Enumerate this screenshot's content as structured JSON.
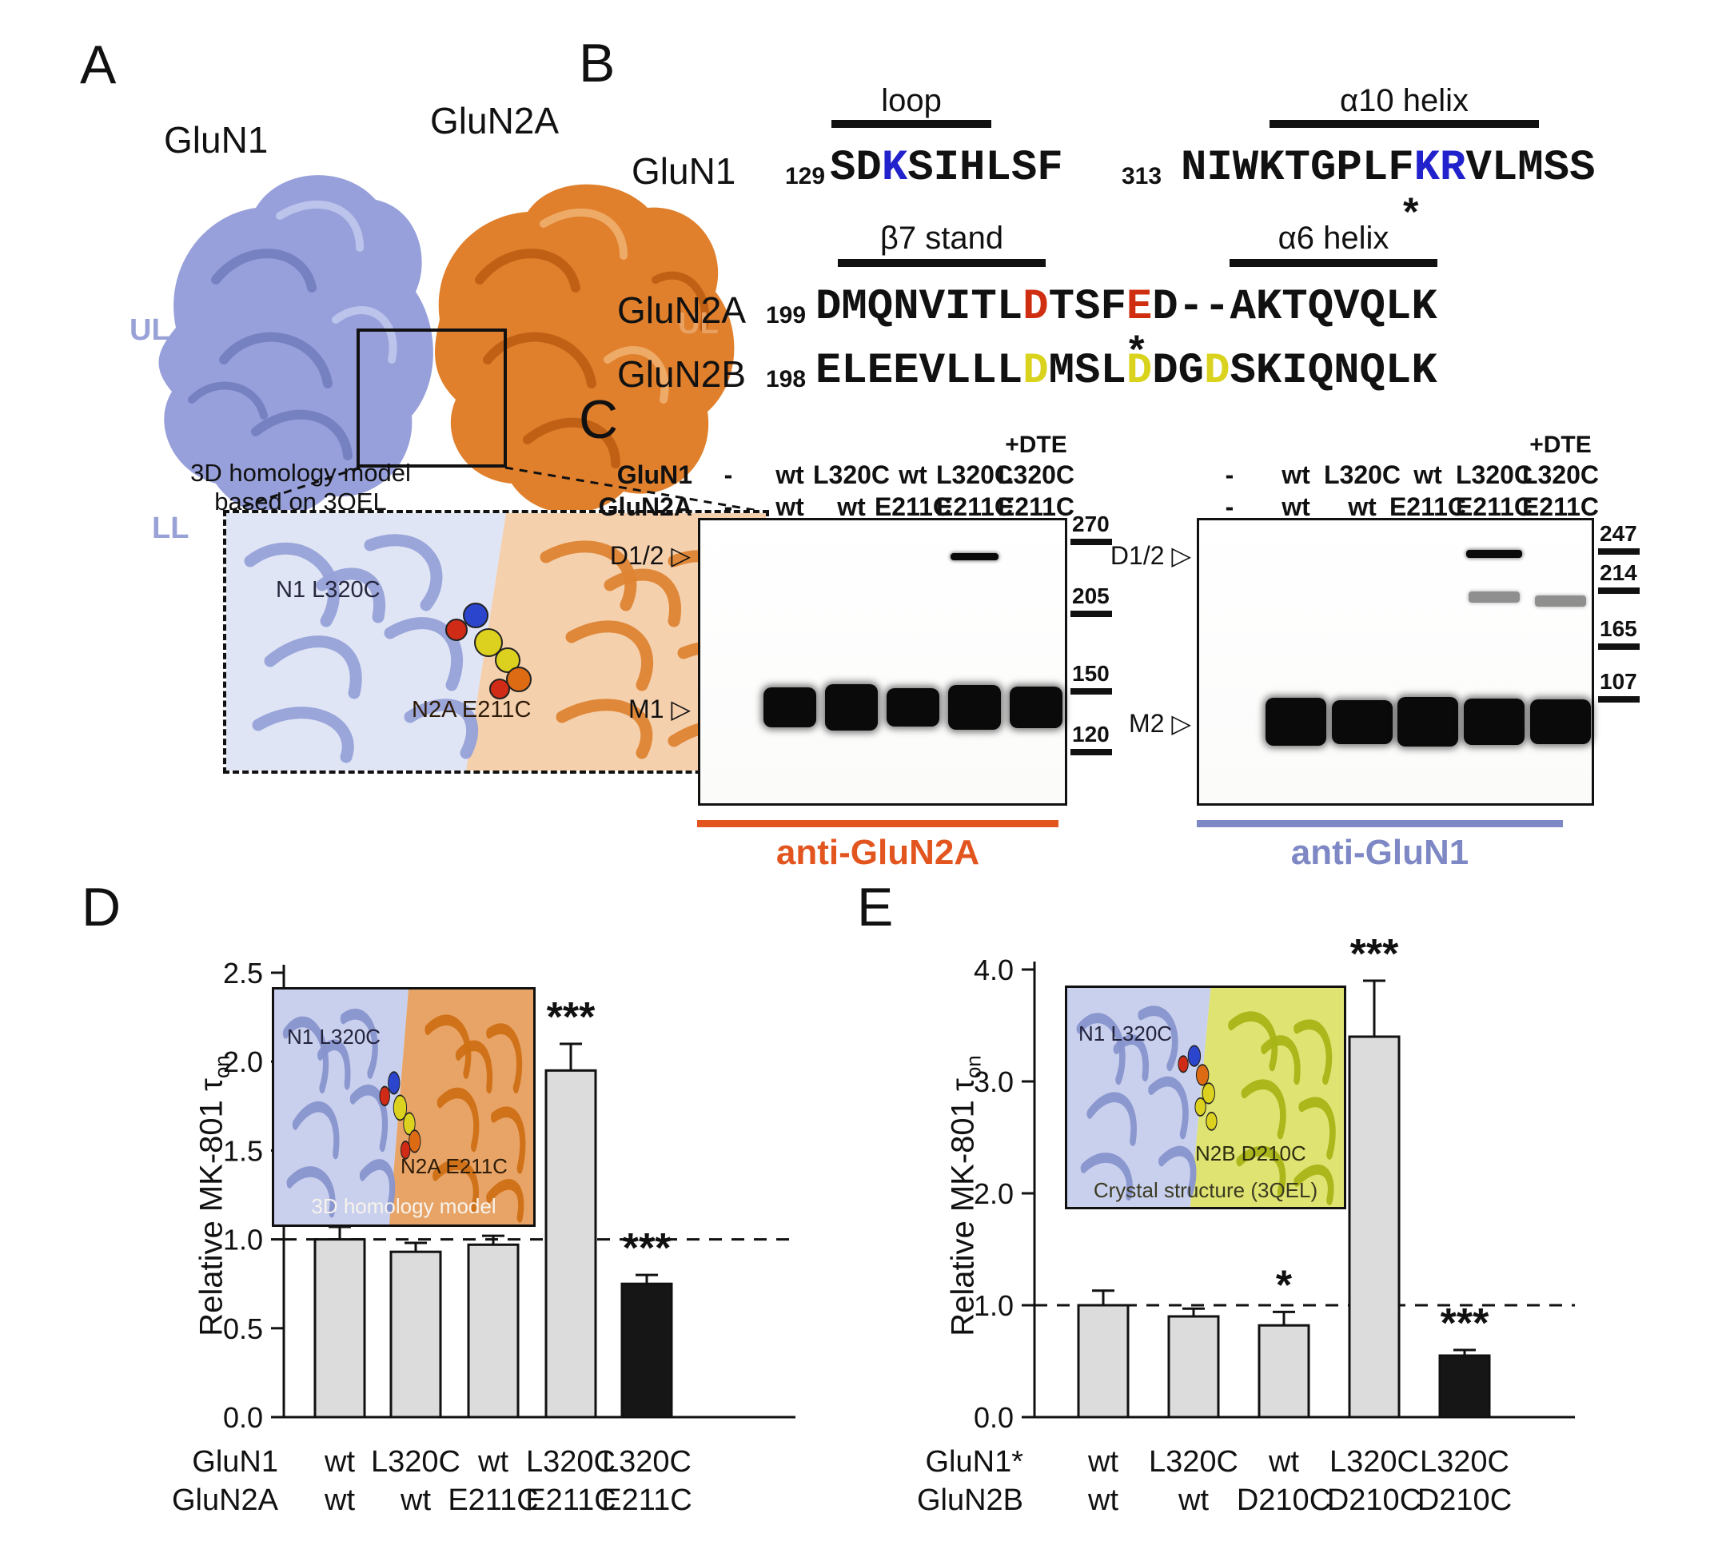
{
  "panelA": {
    "label": "A",
    "glun1": "GluN1",
    "glun2a": "GluN2A",
    "ul": "UL",
    "ll": "LL",
    "caption1": "3D homology model",
    "caption2": "based on 3QEL",
    "residue1": "N1 L320C",
    "residue2": "N2A E211C"
  },
  "panelB": {
    "label": "B",
    "headers": {
      "loop": "loop",
      "a10": "α10 helix",
      "b7": "β7 stand",
      "a6": "α6 helix"
    },
    "glun1": {
      "name": "GluN1",
      "start1": "129",
      "seq1": [
        {
          "t": "SD"
        },
        {
          "t": "K",
          "c": "blue"
        },
        {
          "t": "SIHLSF"
        }
      ],
      "start2": "313",
      "seq2": [
        {
          "t": "NIWKTGPLF"
        },
        {
          "t": "KR",
          "c": "blue"
        },
        {
          "t": "VLMSS"
        }
      ],
      "asterisk": "*"
    },
    "glun2a": {
      "name": "GluN2A",
      "start": "199",
      "seq": [
        {
          "t": "DMQNVITL"
        },
        {
          "t": "D",
          "c": "red"
        },
        {
          "t": "TSF"
        },
        {
          "t": "E",
          "c": "red"
        },
        {
          "t": "D--AKTQVQLK"
        }
      ],
      "asterisk": "*"
    },
    "glun2b": {
      "name": "GluN2B",
      "start": "198",
      "seq": [
        {
          "t": "ELEEVLLL"
        },
        {
          "t": "D",
          "c": "yellow"
        },
        {
          "t": "MSL"
        },
        {
          "t": "D",
          "c": "yellow"
        },
        {
          "t": "DG"
        },
        {
          "t": "D",
          "c": "yellow"
        },
        {
          "t": "SKIQNQLK"
        }
      ]
    }
  },
  "panelC": {
    "label": "C",
    "left": {
      "dte": "+DTE",
      "arrow": "▷",
      "row1_name": "GluN1",
      "row2_name": "GluN2A",
      "row1": [
        "-",
        "wt",
        "L320C",
        "wt",
        "L320C",
        "L320C"
      ],
      "row2": [
        "-",
        "wt",
        "wt",
        "E211C",
        "E211C",
        "E211C"
      ],
      "d12": "D1/2",
      "m": "M1",
      "markers": [
        "270",
        "205",
        "150",
        "120"
      ],
      "bands_main_lanes": [
        1,
        2,
        3,
        4,
        5
      ],
      "bands_d12_lanes": [
        4
      ],
      "antibody": "anti-GluN2A",
      "color": "#e2551f"
    },
    "right": {
      "dte": "+DTE",
      "arrow": "▷",
      "row1": [
        "-",
        "wt",
        "L320C",
        "wt",
        "L320C",
        "L320C"
      ],
      "row2": [
        "-",
        "wt",
        "wt",
        "E211C",
        "E211C",
        "E211C"
      ],
      "d12": "D1/2",
      "m": "M2",
      "markers": [
        "247",
        "214",
        "165",
        "107"
      ],
      "bands_main_lanes": [
        1,
        2,
        3,
        4,
        5
      ],
      "bands_d12_lanes": [
        4
      ],
      "bands_faint_lanes": [
        4,
        5
      ],
      "antibody": "anti-GluN1",
      "color": "#7d88c4"
    }
  },
  "chart_data": [
    {
      "id": "D",
      "panel_label": "D",
      "type": "bar",
      "ylabel_prefix": "Relative MK-801 τ",
      "ylabel_sub": "on",
      "ylim": [
        0,
        2.5
      ],
      "yticks": [
        "0.0",
        "0.5",
        "1.0",
        "1.5",
        "2.0",
        "2.5"
      ],
      "dashed_line_y": 1.0,
      "x_row_names": [
        "GluN1",
        "GluN2A"
      ],
      "categories": [
        {
          "row1": "wt",
          "row2": "wt"
        },
        {
          "row1": "L320C",
          "row2": "wt"
        },
        {
          "row1": "wt",
          "row2": "E211C"
        },
        {
          "row1": "L320C",
          "row2": "E211C"
        },
        {
          "row1": "L320C",
          "row2": "E211C"
        }
      ],
      "values": [
        1.0,
        0.93,
        0.97,
        1.95,
        0.75
      ],
      "errors": [
        0.07,
        0.05,
        0.05,
        0.15,
        0.05
      ],
      "significance": [
        "",
        "",
        "",
        "***",
        "***"
      ],
      "bar_colors": [
        "#dcdcdc",
        "#dcdcdc",
        "#dcdcdc",
        "#dcdcdc",
        "#161616"
      ],
      "inset": {
        "line1": "N1 L320C",
        "line2": "N2A E211C",
        "line3": "3D homology model"
      }
    },
    {
      "id": "E",
      "panel_label": "E",
      "type": "bar",
      "ylabel_prefix": "Relative MK-801 τ",
      "ylabel_sub": "on",
      "ylim": [
        0,
        4.0
      ],
      "yticks": [
        "0.0",
        "1.0",
        "2.0",
        "3.0",
        "4.0"
      ],
      "dashed_line_y": 1.0,
      "x_row_names": [
        "GluN1*",
        "GluN2B"
      ],
      "categories": [
        {
          "row1": "wt",
          "row2": "wt"
        },
        {
          "row1": "L320C",
          "row2": "wt"
        },
        {
          "row1": "wt",
          "row2": "D210C"
        },
        {
          "row1": "L320C",
          "row2": "D210C"
        },
        {
          "row1": "L320C",
          "row2": "D210C"
        }
      ],
      "values": [
        1.0,
        0.9,
        0.82,
        3.4,
        0.55
      ],
      "errors": [
        0.13,
        0.07,
        0.12,
        0.5,
        0.05
      ],
      "significance": [
        "",
        "",
        "*",
        "***",
        "***"
      ],
      "bar_colors": [
        "#dcdcdc",
        "#dcdcdc",
        "#dcdcdc",
        "#dcdcdc",
        "#161616"
      ],
      "inset": {
        "line1": "N1 L320C",
        "line2": "N2B D210C",
        "line3": "Crystal structure (3QEL)"
      }
    }
  ]
}
